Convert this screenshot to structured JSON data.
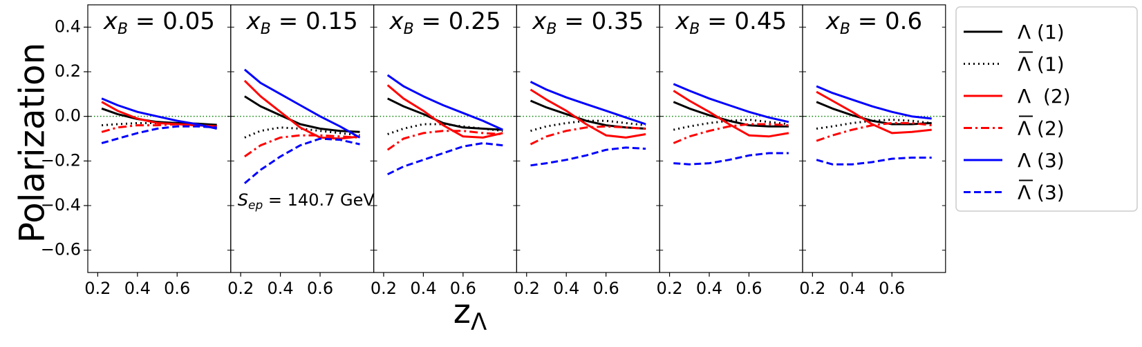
{
  "chart_data": {
    "type": "line",
    "ylabel": "Polarization",
    "xlabel_main": "z",
    "xlabel_sub": "Λ",
    "ylim": [
      -0.7,
      0.5
    ],
    "xlim": [
      0.15,
      0.87
    ],
    "yticks": [
      -0.6,
      -0.4,
      -0.2,
      0.0,
      0.2,
      0.4
    ],
    "ytick_labels": [
      "−0.6",
      "−0.4",
      "−0.2",
      "0.0",
      "0.2",
      "0.4"
    ],
    "xticks": [
      0.2,
      0.4,
      0.6
    ],
    "xtick_labels": [
      "0.2",
      "0.4",
      "0.6"
    ],
    "reference_line": {
      "y": 0.0,
      "color": "#008000",
      "style": "dotted"
    },
    "annotation": {
      "panel": 1,
      "text_main": "S",
      "text_sub": "ep",
      "text_rest": " = 140.7 GeV"
    },
    "legend": {
      "placement": "right-outside",
      "entries": [
        {
          "label": "Λ (1)",
          "overline": false,
          "color": "#000000",
          "dash": "solid"
        },
        {
          "label": "Λ (1)",
          "overline": true,
          "color": "#000000",
          "dash": "dotted"
        },
        {
          "label": "Λ  (2)",
          "overline": false,
          "color": "#ff0000",
          "dash": "solid"
        },
        {
          "label": "Λ (2)",
          "overline": true,
          "color": "#ff0000",
          "dash": "dashdot"
        },
        {
          "label": "Λ (3)",
          "overline": false,
          "color": "#0000ff",
          "dash": "solid"
        },
        {
          "label": "Λ (3)",
          "overline": true,
          "color": "#0000ff",
          "dash": "dashed"
        }
      ]
    },
    "x": [
      0.22,
      0.3,
      0.4,
      0.5,
      0.6,
      0.7,
      0.8
    ],
    "panels": [
      {
        "title_var": "x",
        "title_sub": "B",
        "title_value": " = 0.05",
        "series": [
          {
            "values": [
              0.035,
              0.01,
              -0.012,
              -0.025,
              -0.03,
              -0.033,
              -0.038
            ]
          },
          {
            "values": [
              -0.04,
              -0.035,
              -0.03,
              -0.03,
              -0.03,
              -0.035,
              -0.04
            ]
          },
          {
            "values": [
              0.065,
              0.025,
              -0.01,
              -0.03,
              -0.035,
              -0.04,
              -0.045
            ]
          },
          {
            "values": [
              -0.07,
              -0.05,
              -0.04,
              -0.04,
              -0.035,
              -0.04,
              -0.045
            ]
          },
          {
            "values": [
              0.08,
              0.05,
              0.02,
              0.0,
              -0.02,
              -0.035,
              -0.055
            ]
          },
          {
            "values": [
              -0.12,
              -0.1,
              -0.075,
              -0.055,
              -0.045,
              -0.045,
              -0.05
            ]
          }
        ]
      },
      {
        "title_var": "x",
        "title_sub": "B",
        "title_value": " = 0.15",
        "series": [
          {
            "values": [
              0.09,
              0.045,
              0.005,
              -0.035,
              -0.055,
              -0.065,
              -0.07
            ]
          },
          {
            "values": [
              -0.095,
              -0.065,
              -0.05,
              -0.055,
              -0.065,
              -0.075,
              -0.085
            ]
          },
          {
            "values": [
              0.16,
              0.09,
              0.02,
              -0.05,
              -0.095,
              -0.1,
              -0.09
            ]
          },
          {
            "values": [
              -0.18,
              -0.13,
              -0.095,
              -0.085,
              -0.085,
              -0.09,
              -0.095
            ]
          },
          {
            "values": [
              0.21,
              0.15,
              0.1,
              0.05,
              0.0,
              -0.045,
              -0.095
            ]
          },
          {
            "values": [
              -0.3,
              -0.24,
              -0.18,
              -0.13,
              -0.1,
              -0.105,
              -0.125
            ]
          }
        ]
      },
      {
        "title_var": "x",
        "title_sub": "B",
        "title_value": " = 0.25",
        "series": [
          {
            "values": [
              0.08,
              0.045,
              0.01,
              -0.03,
              -0.05,
              -0.055,
              -0.06
            ]
          },
          {
            "values": [
              -0.08,
              -0.055,
              -0.035,
              -0.035,
              -0.045,
              -0.055,
              -0.065
            ]
          },
          {
            "values": [
              0.14,
              0.08,
              0.025,
              -0.04,
              -0.09,
              -0.095,
              -0.075
            ]
          },
          {
            "values": [
              -0.15,
              -0.1,
              -0.075,
              -0.065,
              -0.065,
              -0.075,
              -0.08
            ]
          },
          {
            "values": [
              0.185,
              0.135,
              0.09,
              0.05,
              0.015,
              -0.02,
              -0.06
            ]
          },
          {
            "values": [
              -0.26,
              -0.225,
              -0.195,
              -0.165,
              -0.135,
              -0.12,
              -0.13
            ]
          }
        ]
      },
      {
        "title_var": "x",
        "title_sub": "B",
        "title_value": " = 0.35",
        "series": [
          {
            "values": [
              0.07,
              0.04,
              0.01,
              -0.02,
              -0.04,
              -0.05,
              -0.055
            ]
          },
          {
            "values": [
              -0.065,
              -0.045,
              -0.03,
              -0.02,
              -0.02,
              -0.03,
              -0.04
            ]
          },
          {
            "values": [
              0.12,
              0.075,
              0.025,
              -0.035,
              -0.085,
              -0.095,
              -0.08
            ]
          },
          {
            "values": [
              -0.125,
              -0.09,
              -0.065,
              -0.05,
              -0.045,
              -0.05,
              -0.055
            ]
          },
          {
            "values": [
              0.155,
              0.12,
              0.085,
              0.055,
              0.025,
              -0.005,
              -0.035
            ]
          },
          {
            "values": [
              -0.22,
              -0.21,
              -0.195,
              -0.175,
              -0.15,
              -0.14,
              -0.145
            ]
          }
        ]
      },
      {
        "title_var": "x",
        "title_sub": "B",
        "title_value": " = 0.45",
        "series": [
          {
            "values": [
              0.065,
              0.035,
              0.005,
              -0.02,
              -0.04,
              -0.045,
              -0.045
            ]
          },
          {
            "values": [
              -0.06,
              -0.045,
              -0.03,
              -0.02,
              -0.015,
              -0.025,
              -0.035
            ]
          },
          {
            "values": [
              0.115,
              0.07,
              0.02,
              -0.035,
              -0.085,
              -0.09,
              -0.075
            ]
          },
          {
            "values": [
              -0.12,
              -0.09,
              -0.065,
              -0.045,
              -0.035,
              -0.035,
              -0.04
            ]
          },
          {
            "values": [
              0.145,
              0.115,
              0.08,
              0.05,
              0.02,
              -0.005,
              -0.025
            ]
          },
          {
            "values": [
              -0.21,
              -0.215,
              -0.21,
              -0.195,
              -0.175,
              -0.165,
              -0.165
            ]
          }
        ]
      },
      {
        "title_var": "x",
        "title_sub": "B",
        "title_value": " = 0.6",
        "series": [
          {
            "values": [
              0.065,
              0.035,
              0.005,
              -0.02,
              -0.035,
              -0.035,
              -0.03
            ]
          },
          {
            "values": [
              -0.055,
              -0.045,
              -0.03,
              -0.02,
              -0.015,
              -0.02,
              -0.03
            ]
          },
          {
            "values": [
              0.11,
              0.07,
              0.02,
              -0.035,
              -0.075,
              -0.07,
              -0.06
            ]
          },
          {
            "values": [
              -0.11,
              -0.085,
              -0.06,
              -0.04,
              -0.03,
              -0.03,
              -0.04
            ]
          },
          {
            "values": [
              0.135,
              0.105,
              0.075,
              0.045,
              0.02,
              0.0,
              -0.01
            ]
          },
          {
            "values": [
              -0.195,
              -0.215,
              -0.215,
              -0.205,
              -0.19,
              -0.185,
              -0.185
            ]
          }
        ]
      }
    ]
  }
}
